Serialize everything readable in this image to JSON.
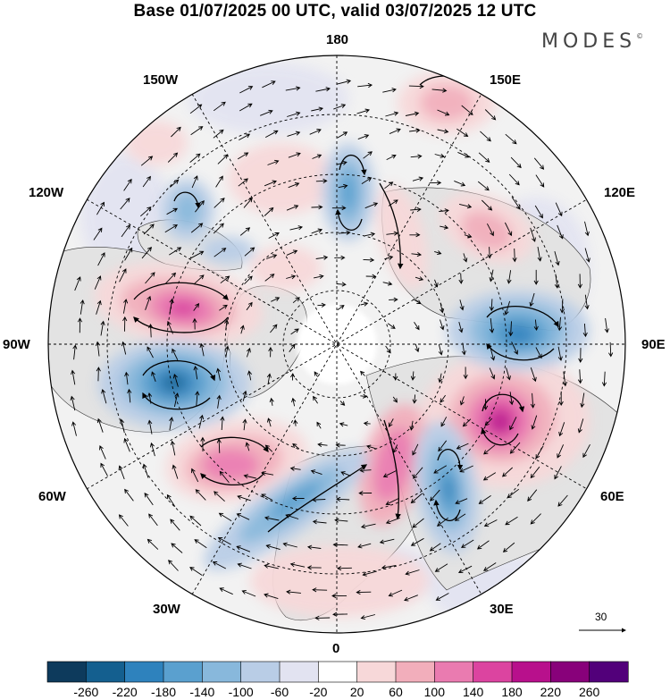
{
  "title": "Base 01/07/2025 00 UTC, valid 03/07/2025 12 UTC",
  "logo": {
    "text": "MODES",
    "mark": "©"
  },
  "longitude_labels": {
    "top": "180",
    "bottom": "0",
    "left": "90W",
    "right": "90E",
    "upper_left": "150W",
    "upper_right": "150E",
    "left_upper": "120W",
    "right_upper": "120E",
    "left_lower": "60W",
    "right_lower": "60E",
    "lower_left": "30W",
    "lower_right": "30E"
  },
  "vector_scale": {
    "value": "30"
  },
  "colorbar": {
    "labels": [
      "-260",
      "-220",
      "-180",
      "-140",
      "-100",
      "-60",
      "-20",
      "20",
      "60",
      "100",
      "140",
      "180",
      "220",
      "260"
    ],
    "colors": [
      "#0d3a5c",
      "#145f8f",
      "#2e82bd",
      "#5aa0cf",
      "#88b8dc",
      "#b9cde6",
      "#e2e3f1",
      "#ffffff",
      "#f7d8d9",
      "#f2aebb",
      "#ea7bb0",
      "#dc44a0",
      "#b8108c",
      "#88017a",
      "#52007a"
    ]
  },
  "colors": {
    "land": "#e3e3e3",
    "coastline": "#333333",
    "gridline": "#000000"
  }
}
